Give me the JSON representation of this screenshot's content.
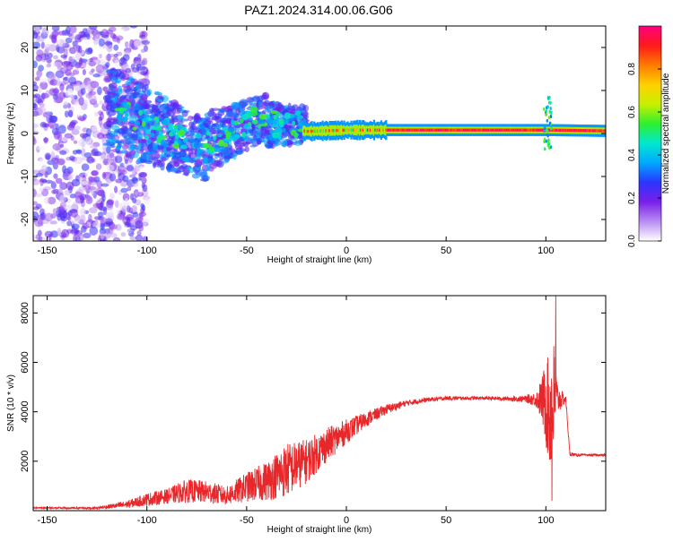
{
  "title": "PAZ1.2024.314.00.06.G06",
  "chart_data": [
    {
      "type": "heatmap",
      "name": "spectrogram",
      "xlabel": "Height of straight line (km)",
      "ylabel": "Frequency (Hz)",
      "xlim": [
        -157,
        130
      ],
      "ylim": [
        -25,
        25
      ],
      "xticks": [
        -150,
        -100,
        -50,
        0,
        50,
        100
      ],
      "yticks": [
        -20,
        -10,
        0,
        10,
        20
      ],
      "grid": false,
      "colorbar": {
        "label": "Normalized spectral amplitude",
        "range": [
          0.0,
          1.0
        ],
        "ticks": [
          "0.0",
          "0.2",
          "0.4",
          "0.6",
          "0.8"
        ],
        "colormap": [
          "#ffffff",
          "#b88cf2",
          "#7a1fe8",
          "#2b35ff",
          "#00a8ff",
          "#00e8d0",
          "#2ef02e",
          "#c8f000",
          "#ffd000",
          "#ff7a00",
          "#ff1a1a",
          "#ff0080"
        ]
      },
      "features": {
        "carrier_center_hz": [
          [
            -30,
            1.2
          ],
          [
            -20,
            0.5
          ],
          [
            0,
            0.8
          ],
          [
            50,
            0.8
          ],
          [
            100,
            0.8
          ],
          [
            130,
            0.6
          ]
        ],
        "strong_signal_from_km": -22,
        "scattered_noise_up_to_km": -110
      }
    },
    {
      "type": "line",
      "name": "snr",
      "xlabel": "Height of straight line (km)",
      "ylabel": "SNR (10 * v/v)",
      "xlim": [
        -157,
        130
      ],
      "ylim": [
        0,
        8700
      ],
      "xticks": [
        -150,
        -100,
        -50,
        0,
        50,
        100
      ],
      "yticks": [
        2000,
        4000,
        6000,
        8000
      ],
      "grid": false,
      "line_color": "#e8272a",
      "series": [
        {
          "x": [
            -157,
            -140,
            -125,
            -110,
            -100,
            -90,
            -80,
            -70,
            -60,
            -50,
            -40,
            -30,
            -20,
            -10,
            0,
            10,
            20,
            30,
            40,
            50,
            60,
            70,
            80,
            90,
            95,
            98,
            100,
            102,
            104,
            106,
            110,
            112,
            115,
            120,
            130
          ],
          "y": [
            120,
            100,
            110,
            250,
            450,
            580,
            800,
            750,
            600,
            950,
            1200,
            1650,
            2000,
            2650,
            3200,
            3700,
            4100,
            4350,
            4480,
            4550,
            4550,
            4550,
            4530,
            4520,
            4500,
            4500,
            4400,
            4000,
            4400,
            4500,
            4500,
            2300,
            2250,
            2250,
            2250
          ],
          "noise": [
            30,
            40,
            50,
            150,
            260,
            300,
            480,
            450,
            380,
            600,
            800,
            1100,
            900,
            700,
            500,
            300,
            200,
            120,
            90,
            80,
            70,
            70,
            80,
            140,
            300,
            900,
            1800,
            2500,
            2500,
            600,
            120,
            100,
            50,
            40,
            40
          ]
        }
      ],
      "peaks": [
        {
          "x": 101,
          "y": 6200
        },
        {
          "x": 105,
          "y": 8700
        },
        {
          "x": 103,
          "y": 400
        }
      ]
    }
  ]
}
